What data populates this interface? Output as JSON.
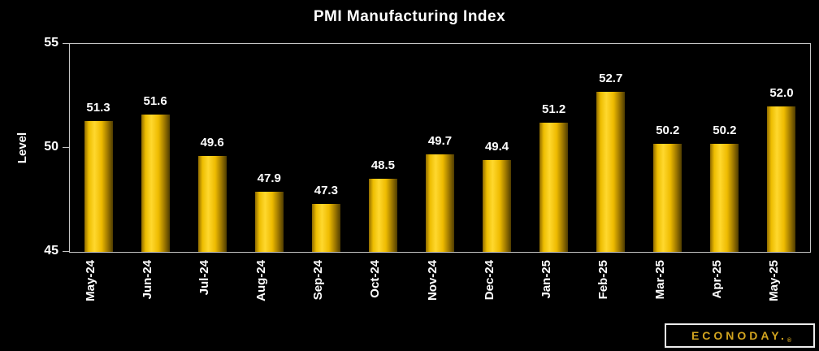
{
  "chart_data": {
    "type": "bar",
    "title": "PMI Manufacturing Index",
    "xlabel": "",
    "ylabel": "Level",
    "categories": [
      "May-24",
      "Jun-24",
      "Jul-24",
      "Aug-24",
      "Sep-24",
      "Oct-24",
      "Nov-24",
      "Dec-24",
      "Jan-25",
      "Feb-25",
      "Mar-25",
      "Apr-25",
      "May-25"
    ],
    "values": [
      51.3,
      51.6,
      49.6,
      47.9,
      47.3,
      48.5,
      49.7,
      49.4,
      51.2,
      52.7,
      50.2,
      50.2,
      52.0
    ],
    "value_labels": [
      "51.3",
      "51.6",
      "49.6",
      "47.9",
      "47.3",
      "48.5",
      "49.7",
      "49.4",
      "51.2",
      "52.7",
      "50.2",
      "50.2",
      "52.0"
    ],
    "ylim": [
      45,
      55
    ],
    "yticks": [
      55,
      50,
      45
    ],
    "grid": false,
    "legend": false,
    "background_color": "#000000",
    "text_color": "#FFFFFF",
    "axis_color": "#C6C6C6",
    "bar_color": "#FFD21A"
  },
  "branding": {
    "logo_text": "ECONODAY.",
    "registered_mark": "®",
    "logo_color": "#D2A41F"
  }
}
